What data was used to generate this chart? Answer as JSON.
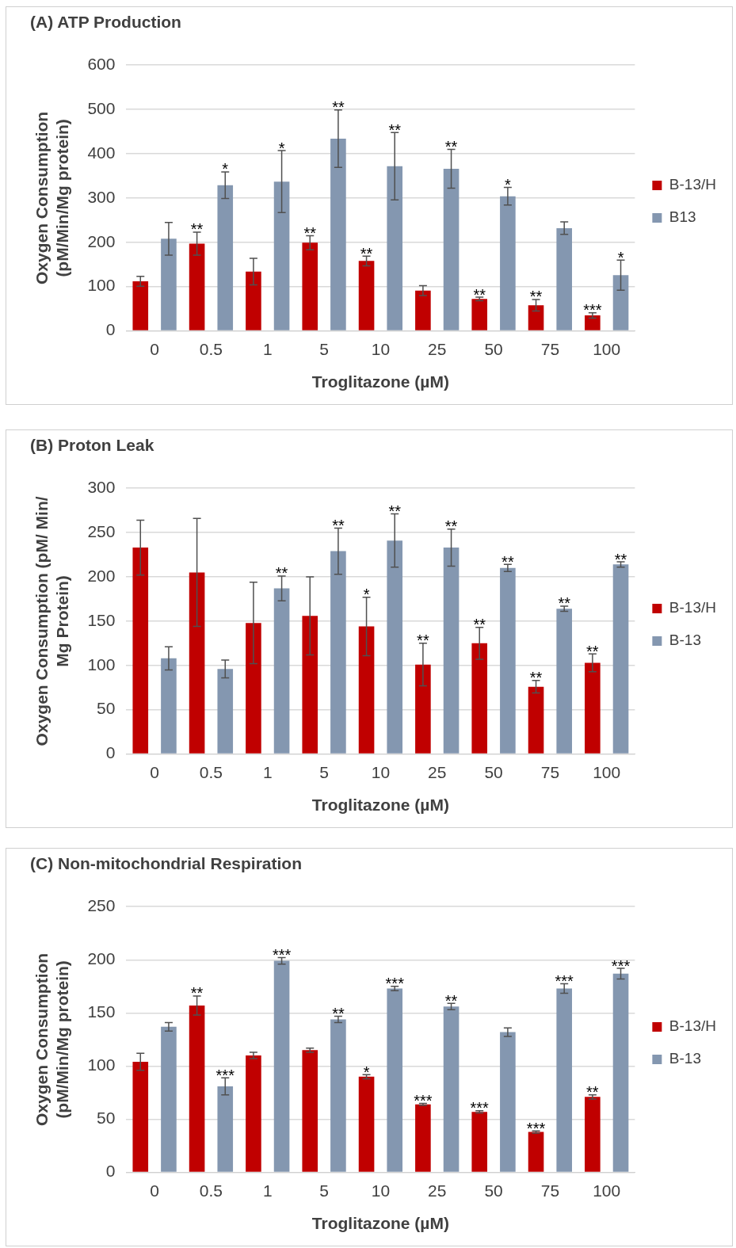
{
  "chart_data": [
    {
      "type": "bar",
      "title": "(A) ATP Production",
      "xlabel": "Troglitazone (µM)",
      "ylabel": "Oxygen Consumption\n(pM/Min/Mg protein)",
      "categories": [
        "0",
        "0.5",
        "1",
        "5",
        "10",
        "25",
        "50",
        "75",
        "100"
      ],
      "series": [
        {
          "name": "B-13/H",
          "color": "#c00000",
          "values": [
            112,
            197,
            134,
            199,
            158,
            91,
            72,
            58,
            35
          ],
          "errors": [
            11,
            26,
            30,
            16,
            11,
            11,
            4,
            13,
            6
          ],
          "value_labels": [
            null,
            "**",
            null,
            "**",
            "**",
            null,
            "**",
            "**",
            "***"
          ]
        },
        {
          "name": "B13",
          "color": "#8497b0",
          "values": [
            208,
            329,
            337,
            434,
            372,
            366,
            304,
            232,
            126
          ],
          "errors": [
            37,
            30,
            70,
            65,
            76,
            44,
            20,
            14,
            34
          ],
          "value_labels": [
            null,
            "*",
            "*",
            "**",
            "**",
            "**",
            "*",
            null,
            "*"
          ]
        }
      ],
      "ylim": [
        0,
        600
      ],
      "yticks": [
        0,
        100,
        200,
        300,
        400,
        500,
        600
      ],
      "grid": "y",
      "legend": "right"
    },
    {
      "type": "bar",
      "title": "(B) Proton Leak",
      "xlabel": "Troglitazone (µM)",
      "ylabel": "Oxygen Consumption (pM/ Min/\nMg Protein)",
      "categories": [
        "0",
        "0.5",
        "1",
        "5",
        "10",
        "25",
        "50",
        "75",
        "100"
      ],
      "series": [
        {
          "name": "B-13/H",
          "color": "#c00000",
          "values": [
            233,
            205,
            148,
            156,
            144,
            101,
            125,
            76,
            103
          ],
          "errors": [
            31,
            61,
            46,
            44,
            33,
            24,
            18,
            7,
            10
          ],
          "value_labels": [
            null,
            null,
            null,
            null,
            "*",
            "**",
            "**",
            "**",
            "**"
          ]
        },
        {
          "name": "B-13",
          "color": "#8497b0",
          "values": [
            108,
            96,
            187,
            229,
            241,
            233,
            210,
            164,
            214
          ],
          "errors": [
            13,
            10,
            14,
            26,
            30,
            21,
            4,
            3,
            3
          ],
          "value_labels": [
            null,
            null,
            "**",
            "**",
            "**",
            "**",
            "**",
            "**",
            "**"
          ]
        }
      ],
      "ylim": [
        0,
        300
      ],
      "yticks": [
        0,
        50,
        100,
        150,
        200,
        250,
        300
      ],
      "grid": "y",
      "legend": "right"
    },
    {
      "type": "bar",
      "title": "(C) Non-mitochondrial Respiration",
      "xlabel": "Troglitazone (µM)",
      "ylabel": "Oxygen Consumption\n(pM/Min/Mg protein)",
      "categories": [
        "0",
        "0.5",
        "1",
        "5",
        "10",
        "25",
        "50",
        "75",
        "100"
      ],
      "series": [
        {
          "name": "B-13/H",
          "color": "#c00000",
          "values": [
            104,
            157,
            110,
            115,
            90,
            64,
            57,
            38,
            71
          ],
          "errors": [
            8,
            9,
            3,
            2,
            2,
            1,
            1,
            1,
            2
          ],
          "value_labels": [
            null,
            "**",
            null,
            null,
            "*",
            "***",
            "***",
            "***",
            "**"
          ]
        },
        {
          "name": "B-13",
          "color": "#8497b0",
          "values": [
            137,
            81,
            199,
            144,
            173,
            156,
            132,
            173,
            187
          ],
          "errors": [
            4,
            8,
            3,
            3,
            2,
            3,
            4,
            4.5,
            5
          ],
          "value_labels": [
            null,
            "***",
            "***",
            "**",
            "***",
            "**",
            null,
            "***",
            "***"
          ]
        }
      ],
      "ylim": [
        0,
        250
      ],
      "yticks": [
        0,
        50,
        100,
        150,
        200,
        250
      ],
      "grid": "y",
      "legend": "right"
    }
  ]
}
